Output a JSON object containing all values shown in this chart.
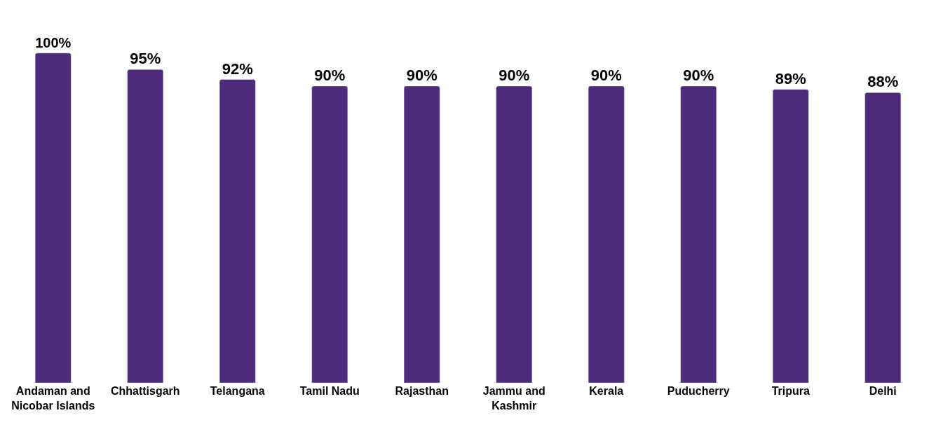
{
  "chart_data": {
    "type": "bar",
    "categories": [
      "Andaman and Nicobar Islands",
      "Chhattisgarh",
      "Telangana",
      "Tamil Nadu",
      "Rajasthan",
      "Jammu and Kashmir",
      "Kerala",
      "Puducherry",
      "Tripura",
      "Delhi"
    ],
    "values": [
      100,
      95,
      92,
      90,
      90,
      90,
      90,
      90,
      89,
      88
    ],
    "value_labels": [
      "100%",
      "95%",
      "92%",
      "90%",
      "90%",
      "90%",
      "90%",
      "90%",
      "89%",
      "88%"
    ],
    "color": "#4e2a7a",
    "tick_labels": "x"
  }
}
